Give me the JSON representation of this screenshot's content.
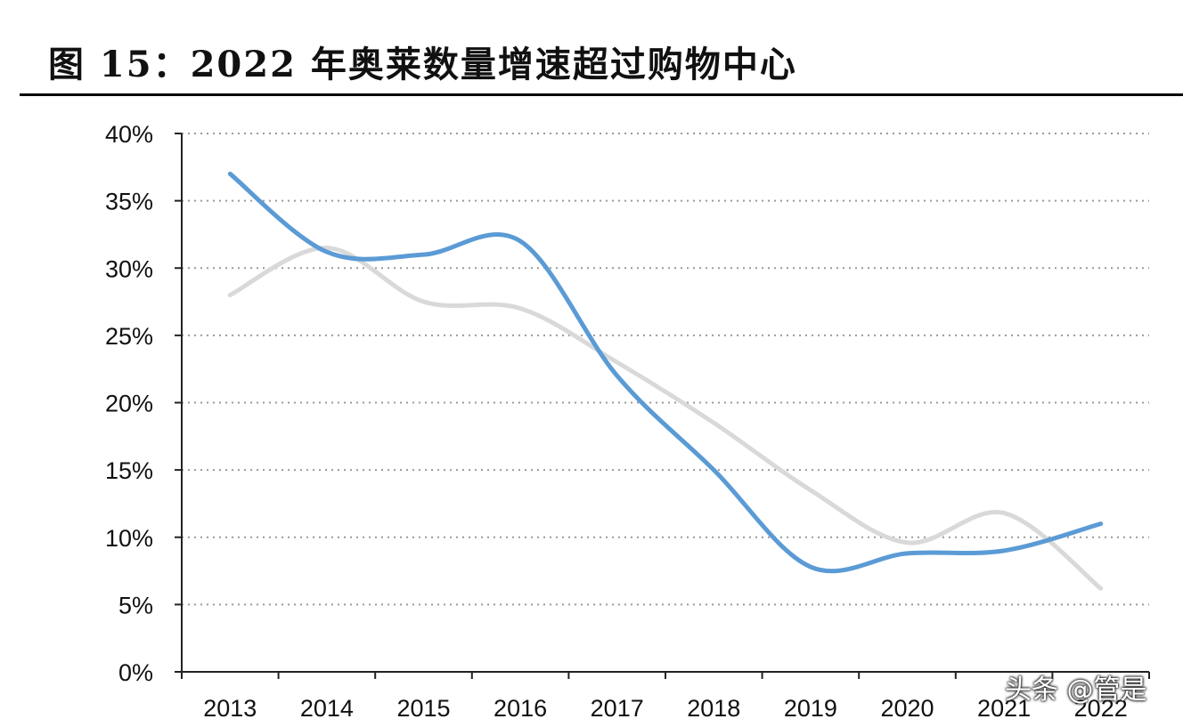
{
  "title": "图 15：2022 年奥莱数量增速超过购物中心",
  "watermark": "头条 @管是",
  "chart_data": {
    "type": "line",
    "categories": [
      "2013",
      "2014",
      "2015",
      "2016",
      "2017",
      "2018",
      "2019",
      "2020",
      "2021",
      "2022"
    ],
    "series": [
      {
        "color": "#5b9bd5",
        "values": [
          37.0,
          31.2,
          31.0,
          32.0,
          22.0,
          15.0,
          7.8,
          8.8,
          9.0,
          11.0
        ]
      },
      {
        "color": "#d9d9d9",
        "values": [
          28.0,
          31.5,
          27.5,
          27.0,
          23.0,
          18.5,
          13.5,
          9.6,
          11.8,
          6.2
        ]
      }
    ],
    "ylim": [
      0,
      40
    ],
    "yticks": [
      "0%",
      "5%",
      "10%",
      "15%",
      "20%",
      "25%",
      "30%",
      "35%",
      "40%"
    ],
    "grid": true,
    "grid_style": "dotted horizontal"
  }
}
